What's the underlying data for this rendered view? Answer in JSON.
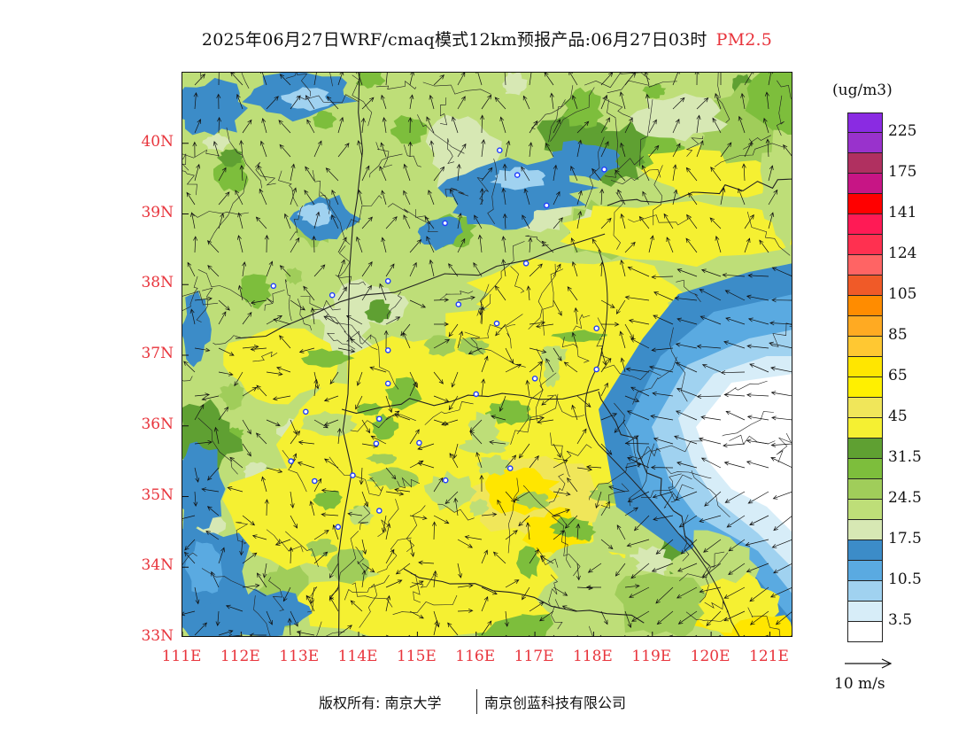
{
  "title": {
    "text": "2025年06月27日WRF/cmaq模式12km预报产品:06月27日03时",
    "species": "PM2.5"
  },
  "axes": {
    "lat_labels": [
      "40N",
      "39N",
      "38N",
      "37N",
      "36N",
      "35N",
      "34N",
      "33N"
    ],
    "lat_values": [
      40,
      39,
      38,
      37,
      36,
      35,
      34,
      33
    ],
    "lon_labels": [
      "111E",
      "112E",
      "113E",
      "114E",
      "115E",
      "116E",
      "117E",
      "118E",
      "119E",
      "120E",
      "121E"
    ],
    "lon_values": [
      111,
      112,
      113,
      114,
      115,
      116,
      117,
      118,
      119,
      120,
      121
    ]
  },
  "colorbar": {
    "units": "(ug/m3)",
    "colors": [
      "#8a2be2",
      "#9932cc",
      "#b03060",
      "#c71585",
      "#ff0000",
      "#ff1a55",
      "#ff3050",
      "#ff6464",
      "#f05a28",
      "#ff8c00",
      "#ffaa22",
      "#ffc832",
      "#ffe600",
      "#fff000",
      "#f0e65a",
      "#f5f032",
      "#5fa032",
      "#7dbe3c",
      "#a0cd5a",
      "#bede78",
      "#d7e8b4",
      "#3c8cc8",
      "#5aaae1",
      "#a0d2f0",
      "#d7edf8",
      "#ffffff"
    ],
    "labels": [
      "225",
      "175",
      "141",
      "124",
      "105",
      "85",
      "65",
      "45",
      "31.5",
      "24.5",
      "17.5",
      "10.5",
      "3.5"
    ]
  },
  "reference_vector": {
    "label": "10 m/s"
  },
  "footer": {
    "copyright": "版权所有: 南京大学",
    "company": "南京创蓝科技有限公司"
  },
  "map_colors": {
    "white": "#ffffff",
    "pale_blue": "#d7edf8",
    "light_blue": "#a0d2f0",
    "mid_blue": "#5aaae1",
    "blue": "#3c8cc8",
    "pale_green": "#d7e8b4",
    "light_green": "#bede78",
    "green": "#a0cd5a",
    "mid_green": "#7dbe3c",
    "dark_green": "#5fa032",
    "yellow": "#f5f032",
    "gold": "#f0e65a",
    "deep_yellow": "#ffe600",
    "boundary": "#222222",
    "city_marker": "#1e3cff",
    "vector": "#111111"
  },
  "cities": [
    {
      "lon": 116.4,
      "lat": 39.9
    },
    {
      "lon": 116.7,
      "lat": 39.55
    },
    {
      "lon": 117.2,
      "lat": 39.12
    },
    {
      "lon": 118.18,
      "lat": 39.63
    },
    {
      "lon": 115.47,
      "lat": 38.87
    },
    {
      "lon": 116.85,
      "lat": 38.3
    },
    {
      "lon": 112.55,
      "lat": 37.98
    },
    {
      "lon": 113.55,
      "lat": 37.85
    },
    {
      "lon": 114.5,
      "lat": 38.05
    },
    {
      "lon": 115.7,
      "lat": 37.72
    },
    {
      "lon": 116.35,
      "lat": 37.45
    },
    {
      "lon": 117.0,
      "lat": 36.67
    },
    {
      "lon": 118.05,
      "lat": 37.38
    },
    {
      "lon": 118.05,
      "lat": 36.8
    },
    {
      "lon": 114.5,
      "lat": 37.07
    },
    {
      "lon": 114.5,
      "lat": 36.6
    },
    {
      "lon": 116.0,
      "lat": 36.45
    },
    {
      "lon": 113.1,
      "lat": 36.2
    },
    {
      "lon": 114.35,
      "lat": 36.1
    },
    {
      "lon": 114.3,
      "lat": 35.75
    },
    {
      "lon": 115.03,
      "lat": 35.76
    },
    {
      "lon": 112.85,
      "lat": 35.5
    },
    {
      "lon": 113.25,
      "lat": 35.22
    },
    {
      "lon": 113.9,
      "lat": 35.3
    },
    {
      "lon": 115.48,
      "lat": 35.23
    },
    {
      "lon": 116.58,
      "lat": 35.4
    },
    {
      "lon": 114.35,
      "lat": 34.8
    },
    {
      "lon": 113.65,
      "lat": 34.57
    }
  ],
  "wind_region_speeds": {
    "inland": [
      0.6,
      1.0
    ],
    "east": [
      1.2,
      1.7
    ]
  }
}
